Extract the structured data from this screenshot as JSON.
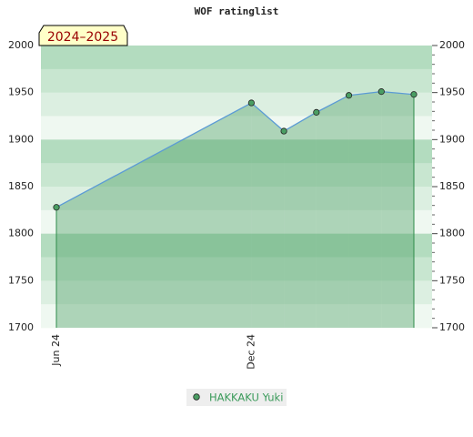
{
  "chart_data": {
    "type": "area",
    "title": "WOF ratinglist",
    "badge": "2024–2025",
    "categories": [
      "Jun 24",
      null,
      null,
      null,
      null,
      null,
      "Dec 24",
      null,
      null,
      null,
      null,
      null
    ],
    "series": [
      {
        "name": "HAKKAKU Yuki",
        "color": "#4a9e63",
        "values": [
          1828,
          null,
          null,
          null,
          null,
          null,
          1939,
          1909,
          1929,
          1947,
          1951,
          1948
        ]
      }
    ],
    "ylim": [
      1700,
      2000
    ],
    "yticks": [
      1700,
      1750,
      1800,
      1850,
      1900,
      1950,
      2000
    ],
    "y2lim": [
      1700,
      2000
    ],
    "y2ticks": [
      1700,
      1750,
      1800,
      1850,
      1900,
      1950,
      2000
    ]
  }
}
